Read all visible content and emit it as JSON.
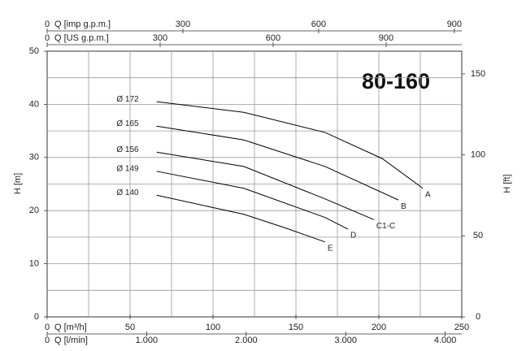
{
  "chart_data": {
    "type": "line",
    "title": "80-160",
    "ylabel": "H [m]",
    "ylim": [
      0,
      50
    ],
    "yticks": [
      0,
      10,
      20,
      30,
      40,
      50
    ],
    "y2label": "H [ft]",
    "y2lim": [
      0,
      164.04
    ],
    "y2ticks": [
      0,
      50,
      100,
      150
    ],
    "x_axes": {
      "bottom": [
        {
          "label": "Q [m³/h]",
          "lim": [
            0,
            250
          ],
          "ticks": [
            0,
            50,
            100,
            150,
            200,
            250
          ]
        },
        {
          "label": "Q [l/min]",
          "lim": [
            0,
            4166.67
          ],
          "ticks": [
            0,
            {
              "value": 1000,
              "label": "1.000"
            },
            {
              "value": 2000,
              "label": "2.000"
            },
            {
              "value": 3000,
              "label": "3.000"
            },
            {
              "value": 4000,
              "label": "4.000"
            }
          ]
        }
      ],
      "top": [
        {
          "label": "Q [imp g.p.m.]",
          "lim": [
            0,
            916.4
          ],
          "ticks": [
            0,
            300,
            600,
            900
          ]
        },
        {
          "label": "Q [US g.p.m.]",
          "lim": [
            0,
            1100.8
          ],
          "ticks": [
            0,
            300,
            600,
            900
          ]
        }
      ]
    },
    "grid_x": [
      25,
      50,
      75,
      100,
      125,
      150,
      175,
      200,
      225
    ],
    "grid_y": [
      5,
      10,
      15,
      20,
      25,
      30,
      35,
      40,
      45
    ],
    "series": [
      {
        "name": "Ø 172",
        "end_label": "A",
        "color": "#000000",
        "x": [
          66,
          118.6,
          167.6,
          202,
          226.5
        ],
        "values": [
          40.5,
          38.5,
          34.7,
          29.8,
          24.2
        ]
      },
      {
        "name": "Ø 165",
        "end_label": "B",
        "color": "#000000",
        "x": [
          66,
          118.6,
          167.6,
          211.8
        ],
        "values": [
          35.9,
          33.3,
          28.3,
          22
        ]
      },
      {
        "name": "Ø 156",
        "end_label": "C1-C",
        "color": "#000000",
        "x": [
          66,
          118.6,
          167.6,
          197
        ],
        "values": [
          31,
          28.3,
          22.2,
          18.3
        ]
      },
      {
        "name": "Ø 149",
        "end_label": "D",
        "color": "#000000",
        "x": [
          66,
          118.6,
          167.6,
          181.4
        ],
        "values": [
          27.4,
          24.2,
          18.7,
          16.5
        ]
      },
      {
        "name": "Ø 140",
        "end_label": "E",
        "color": "#000000",
        "x": [
          66,
          118.6,
          143,
          167.6
        ],
        "values": [
          22.9,
          19.3,
          16.8,
          14.1
        ]
      }
    ]
  }
}
